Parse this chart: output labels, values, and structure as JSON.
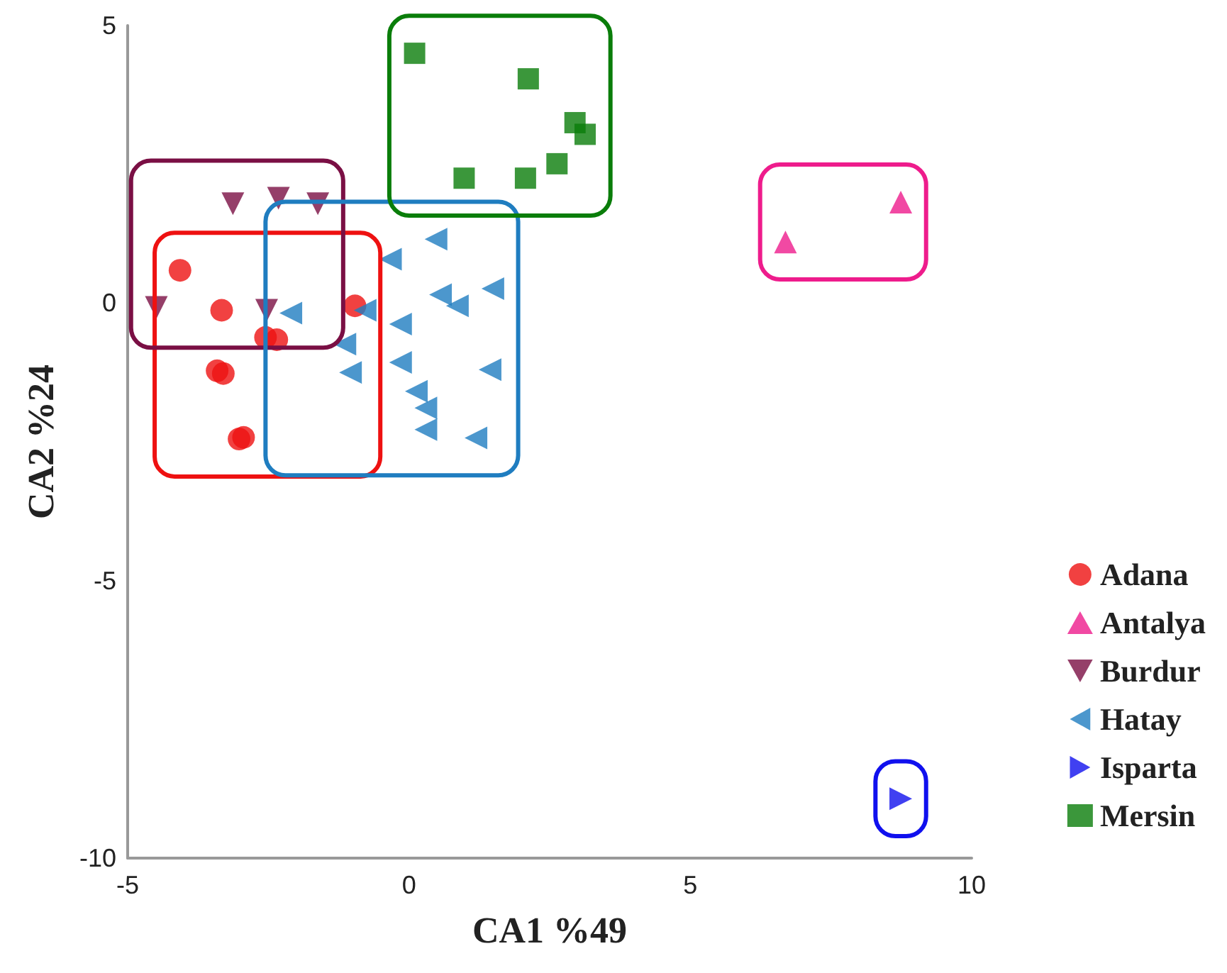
{
  "chart_data": {
    "type": "scatter",
    "xlabel": "CA1 %49",
    "ylabel": "CA2 %24",
    "xlim": [
      -5,
      10
    ],
    "ylim": [
      -10,
      5
    ],
    "xticks": [
      -5,
      0,
      5,
      10
    ],
    "yticks": [
      -10,
      -5,
      0,
      5
    ],
    "grid": false,
    "legend": "bottom right",
    "series": [
      {
        "name": "Adana",
        "color": "#ee1111",
        "marker": "circle",
        "x": [
          -4.07,
          -3.33,
          -2.55,
          -2.35,
          -3.41,
          -3.3,
          -3.02,
          -2.94,
          -0.96
        ],
        "values": [
          0.59,
          -0.13,
          -0.62,
          -0.66,
          -1.22,
          -1.27,
          -2.45,
          -2.42,
          -0.05
        ]
      },
      {
        "name": "Antalya",
        "color": "#ee1c8c",
        "marker": "triangle",
        "x": [
          6.69,
          8.74
        ],
        "values": [
          1.1,
          1.82
        ]
      },
      {
        "name": "Burdur",
        "color": "#7a0f44",
        "marker": "triangle_down",
        "x": [
          -3.13,
          -2.32,
          -1.62,
          -4.49,
          -2.53
        ],
        "values": [
          1.79,
          1.89,
          1.79,
          -0.08,
          -0.13
        ]
      },
      {
        "name": "Hatay",
        "color": "#1f7dc0",
        "marker": "triangle_left",
        "x": [
          0.48,
          -0.33,
          -2.1,
          -0.78,
          0.56,
          0.86,
          1.49,
          -0.15,
          -1.14,
          -1.04,
          -0.15,
          1.44,
          0.13,
          0.3,
          0.3,
          1.19
        ],
        "values": [
          1.15,
          0.79,
          -0.18,
          -0.13,
          0.15,
          -0.05,
          0.26,
          -0.38,
          -0.74,
          -1.25,
          -1.07,
          -1.2,
          -1.59,
          -1.89,
          -2.28,
          -2.43
        ]
      },
      {
        "name": "Isparta",
        "color": "#1010ee",
        "marker": "triangle_right",
        "x": [
          8.74
        ],
        "values": [
          -8.93
        ]
      },
      {
        "name": "Mersin",
        "color": "#0a7d0a",
        "marker": "square",
        "x": [
          0.1,
          2.12,
          2.95,
          3.13,
          2.63,
          2.07,
          0.98
        ],
        "values": [
          4.5,
          4.04,
          3.25,
          3.04,
          2.51,
          2.25,
          2.25
        ]
      }
    ]
  }
}
